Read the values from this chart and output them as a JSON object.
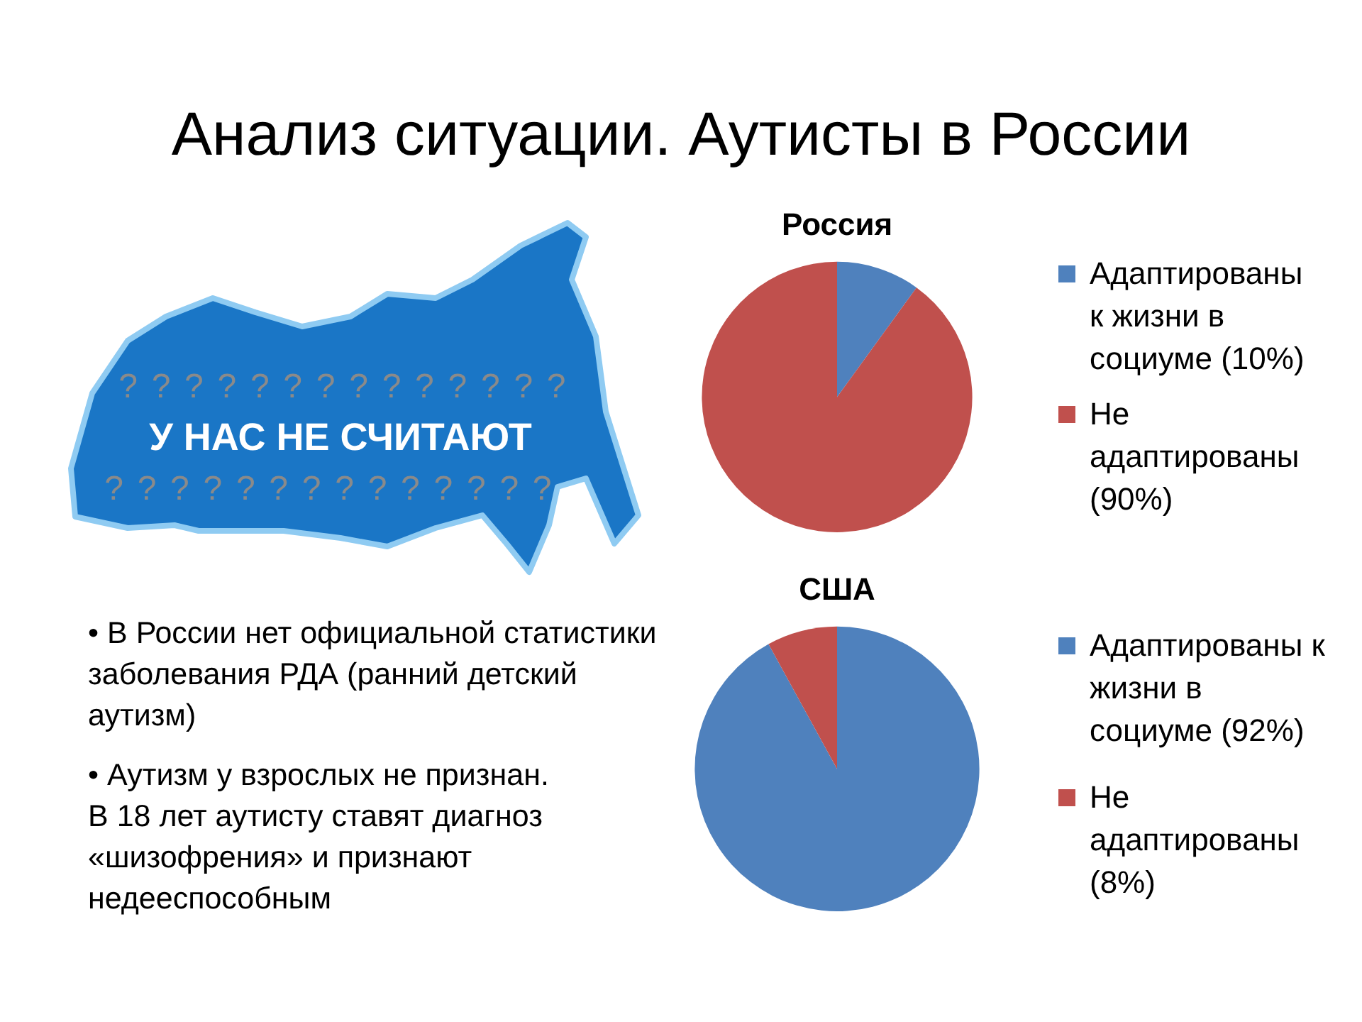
{
  "chart_data": [
    {
      "type": "other",
      "title": "Анализ ситуации. Аутисты в России",
      "annotations": [
        "? ? ? ? ? ? ? ? ? ? ? ? ? ?",
        "У НАС НЕ СЧИТАЮТ",
        "? ? ? ? ? ? ? ? ? ? ? ? ? ?",
        "• В России нет официальной статистики заболевания РДА (ранний детский аутизм)",
        "• Аутизм у взрослых не признан.\nВ 18 лет аутисту ставят диагноз «шизофрения» и признают недееспособным"
      ]
    },
    {
      "type": "pie",
      "title": "Россия",
      "categories": [
        "Адаптированы к жизни в социуме (10%)",
        "Не адаптированы (90%)"
      ],
      "values": [
        10,
        90
      ],
      "colors": [
        "#4f81bd",
        "#c0504d"
      ],
      "legend": "right"
    },
    {
      "type": "pie",
      "title": "США",
      "categories": [
        "Адаптированы к жизни в социуме (92%)",
        "Не адаптированы (8%)"
      ],
      "values": [
        92,
        8
      ],
      "colors": [
        "#4f81bd",
        "#c0504d"
      ],
      "legend": "right"
    }
  ]
}
